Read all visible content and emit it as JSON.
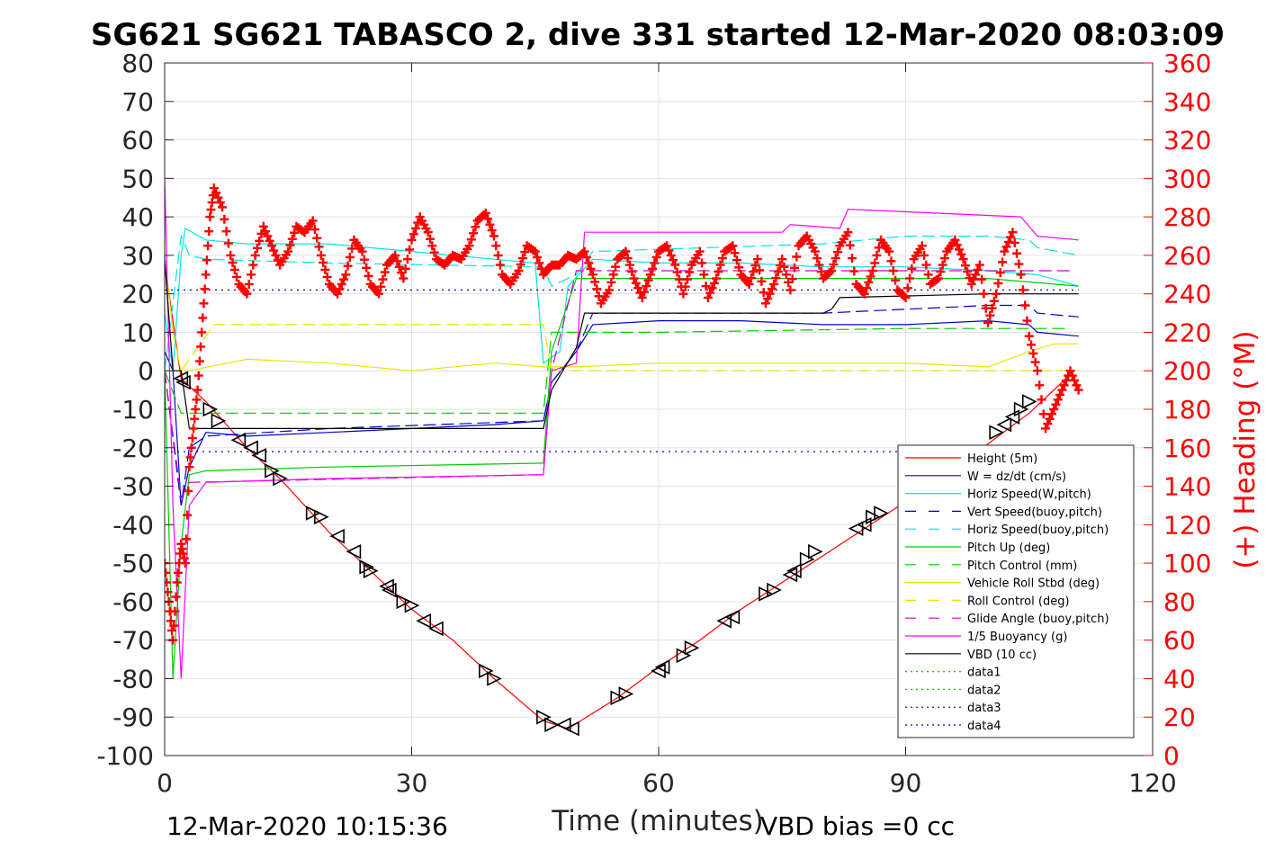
{
  "chart_data": {
    "type": "line",
    "title": "SG621 SG621 TABASCO 2, dive 331 started 12-Mar-2020 08:03:09",
    "xlabel": "Time (minutes)",
    "ylabel": "",
    "ylabel_right": "(+) Heading (°M)",
    "xlim": [
      0,
      120
    ],
    "ylim": [
      -100,
      80
    ],
    "ylim_right": [
      0,
      360
    ],
    "xticks": [
      "0",
      "30",
      "60",
      "90",
      "120"
    ],
    "yticks": [
      "80",
      "70",
      "60",
      "50",
      "40",
      "30",
      "20",
      "10",
      "0",
      "-10",
      "-20",
      "-30",
      "-40",
      "-50",
      "-60",
      "-70",
      "-80",
      "-90",
      "-100"
    ],
    "yticks_right": [
      "360",
      "340",
      "320",
      "300",
      "280",
      "260",
      "240",
      "220",
      "200",
      "180",
      "160",
      "140",
      "120",
      "100",
      "80",
      "60",
      "40",
      "20",
      "0"
    ],
    "grid": true,
    "legend_position": "lower-right",
    "footer_left": "12-Mar-2020 10:15:36",
    "footer_right": "VBD bias =0 cc",
    "series": [
      {
        "name": "Height (5m)",
        "color": "#ff0000",
        "style": "solid",
        "x": [
          0,
          2,
          5,
          10,
          14,
          20,
          25,
          30,
          35,
          40,
          46,
          49,
          55,
          60,
          65,
          70,
          75,
          80,
          85,
          90,
          95,
          100,
          105,
          110
        ],
        "y": [
          28,
          -2,
          -8,
          -20,
          -28,
          -42,
          -52,
          -62,
          -70,
          -80,
          -91,
          -93,
          -85,
          -77,
          -70,
          -62,
          -55,
          -48,
          -41,
          -34,
          -27,
          -19,
          -11,
          -1
        ]
      },
      {
        "name": "W = dz/dt (cm/s)",
        "color": "#0000cc",
        "style": "solid",
        "x": [
          0,
          1,
          2,
          3,
          5,
          10,
          20,
          30,
          40,
          46,
          47,
          50,
          52,
          60,
          70,
          80,
          90,
          100,
          105,
          106,
          111
        ],
        "y": [
          5,
          0,
          -35,
          -25,
          -16,
          -17,
          -16,
          -15,
          -14,
          -13,
          -3,
          5,
          12,
          13,
          13,
          12,
          12,
          13,
          12,
          10,
          9
        ]
      },
      {
        "name": "Horiz Speed(W,pitch)",
        "color": "#00e5e5",
        "style": "solid",
        "x": [
          0,
          1,
          2,
          2.5,
          5,
          10,
          20,
          30,
          40,
          45,
          46,
          48,
          49,
          52,
          60,
          70,
          80,
          90,
          100,
          106,
          111
        ],
        "y": [
          15,
          0,
          30,
          37,
          34,
          33,
          33,
          31,
          29,
          28,
          2,
          5,
          22,
          29,
          28,
          28,
          27,
          27,
          26,
          25,
          22
        ]
      },
      {
        "name": "Vert Speed(buoy,pitch)",
        "color": "#0000cc",
        "style": "dash",
        "x": [
          0,
          2,
          3,
          5,
          20,
          46,
          47,
          50,
          52,
          80,
          90,
          100,
          105,
          106,
          111
        ],
        "y": [
          0,
          -35,
          -20,
          -17,
          -15,
          -13,
          -3,
          5,
          15,
          15,
          16,
          17,
          17,
          15,
          14
        ]
      },
      {
        "name": "Horiz Speed(buoy,pitch)",
        "color": "#00e5e5",
        "style": "dash",
        "x": [
          0,
          2,
          3,
          5,
          20,
          46,
          47,
          50,
          52,
          80,
          90,
          100,
          105,
          106,
          111
        ],
        "y": [
          0,
          35,
          30,
          29,
          28,
          27,
          22,
          25,
          31,
          33,
          35,
          35,
          34,
          32,
          30
        ]
      },
      {
        "name": "Pitch Up (deg)",
        "color": "#00cc00",
        "style": "solid",
        "x": [
          0,
          1,
          2,
          3,
          5,
          20,
          46,
          47,
          50,
          60,
          80,
          100,
          111
        ],
        "y": [
          0,
          -80,
          -45,
          -27,
          -26,
          -25,
          -24,
          5,
          24,
          24,
          24,
          24,
          22
        ]
      },
      {
        "name": "Pitch Control (mm)",
        "color": "#00cc00",
        "style": "dash",
        "x": [
          0,
          2,
          3,
          46,
          47,
          50,
          60,
          90,
          110
        ],
        "y": [
          0,
          -11,
          -11,
          -11,
          10,
          10,
          10,
          11,
          11
        ]
      },
      {
        "name": "Vehicle Roll Stbd (deg)",
        "color": "#e6e600",
        "style": "solid",
        "x": [
          0,
          1,
          2,
          3,
          10,
          20,
          30,
          40,
          46,
          50,
          60,
          70,
          80,
          90,
          100,
          105,
          108,
          111
        ],
        "y": [
          30,
          10,
          0,
          0,
          3,
          2,
          0,
          2,
          1,
          1,
          2,
          2,
          2,
          2,
          1,
          5,
          7,
          7
        ]
      },
      {
        "name": "Roll Control (deg)",
        "color": "#e6e600",
        "style": "dash",
        "x": [
          0,
          2,
          6,
          46,
          47,
          111
        ],
        "y": [
          0,
          0,
          12,
          12,
          0,
          0
        ]
      },
      {
        "name": "Glide Angle (buoy,pitch)",
        "color": "#cc00cc",
        "style": "dash",
        "x": [
          0,
          2,
          3,
          46,
          47,
          50,
          60,
          90,
          110
        ],
        "y": [
          0,
          -33,
          -29,
          -27,
          0,
          26,
          26,
          26,
          26
        ]
      },
      {
        "name": "1/5 Buoyancy (g)",
        "color": "#ff00ff",
        "style": "solid",
        "x": [
          0,
          1,
          2,
          3,
          5,
          20,
          46,
          47,
          50,
          51,
          75,
          76,
          82,
          83,
          104,
          106,
          111
        ],
        "y": [
          50,
          -35,
          -80,
          -35,
          -29,
          -28,
          -27,
          0,
          2,
          36,
          36,
          38,
          37,
          42,
          40,
          35,
          34
        ]
      },
      {
        "name": "VBD (10 cc)",
        "color": "#000000",
        "style": "solid",
        "x": [
          0,
          1,
          2,
          3,
          20,
          46,
          47,
          50,
          51,
          80,
          81,
          82,
          100,
          111
        ],
        "y": [
          29,
          0,
          0,
          -15,
          -15,
          -15,
          -5,
          6,
          15,
          15,
          16,
          19,
          20,
          20
        ]
      },
      {
        "name": "data1",
        "color": "#00cc00",
        "style": "dot",
        "x": [
          0,
          111
        ],
        "y": [
          null,
          null
        ]
      },
      {
        "name": "data2",
        "color": "#00cc00",
        "style": "dot",
        "x": [
          0,
          111
        ],
        "y": [
          null,
          null
        ]
      },
      {
        "name": "data3",
        "color": "#0000cc",
        "style": "dot",
        "x": [
          0,
          111
        ],
        "y": [
          21,
          21
        ]
      },
      {
        "name": "data4",
        "color": "#0000cc",
        "style": "dot",
        "x": [
          0,
          111
        ],
        "y": [
          -21,
          -21
        ]
      }
    ],
    "heading": {
      "color": "#ff0000",
      "marker": "+",
      "x": [
        0,
        0.5,
        1,
        1.5,
        2,
        2.5,
        3,
        3.5,
        4,
        4.5,
        5,
        5.5,
        6,
        7,
        8,
        9,
        10,
        11,
        12,
        13,
        14,
        15,
        16,
        17,
        18,
        19,
        20,
        21,
        22,
        23,
        24,
        25,
        26,
        27,
        28,
        29,
        30,
        31,
        32,
        33,
        34,
        35,
        36,
        37,
        38,
        39,
        40,
        41,
        42,
        43,
        44,
        45,
        46,
        47,
        48,
        49,
        50,
        51,
        52,
        53,
        54,
        55,
        56,
        57,
        58,
        59,
        60,
        61,
        62,
        63,
        64,
        65,
        66,
        67,
        68,
        69,
        70,
        71,
        72,
        73,
        74,
        75,
        76,
        77,
        78,
        79,
        80,
        81,
        82,
        83,
        84,
        85,
        86,
        87,
        88,
        89,
        90,
        91,
        92,
        93,
        94,
        95,
        96,
        97,
        98,
        99,
        100,
        101,
        102,
        103,
        104,
        105,
        106,
        107,
        108,
        109,
        110,
        111
      ],
      "y": [
        100,
        80,
        60,
        90,
        110,
        100,
        150,
        170,
        190,
        220,
        250,
        280,
        295,
        285,
        260,
        245,
        240,
        260,
        275,
        265,
        255,
        262,
        275,
        272,
        278,
        260,
        245,
        240,
        250,
        268,
        262,
        245,
        240,
        255,
        260,
        248,
        268,
        280,
        272,
        258,
        255,
        260,
        258,
        265,
        278,
        282,
        270,
        250,
        245,
        252,
        265,
        262,
        250,
        255,
        255,
        260,
        258,
        262,
        250,
        235,
        242,
        258,
        262,
        248,
        238,
        250,
        262,
        265,
        255,
        240,
        255,
        262,
        238,
        248,
        262,
        265,
        250,
        245,
        258,
        235,
        245,
        258,
        242,
        265,
        270,
        262,
        248,
        252,
        265,
        272,
        245,
        240,
        252,
        268,
        262,
        242,
        238,
        258,
        265,
        245,
        248,
        262,
        268,
        258,
        245,
        255,
        225,
        240,
        262,
        272,
        250,
        218,
        200,
        170,
        180,
        190,
        200,
        190
      ]
    },
    "triangles": {
      "color": "#000000",
      "x": [
        2,
        2.3,
        5.5,
        6.5,
        9,
        10.5,
        11.5,
        13,
        14,
        18,
        19,
        21,
        23,
        24.5,
        25,
        27,
        27.3,
        29,
        30,
        31.5,
        33,
        39,
        40,
        46,
        47,
        48.5,
        49.5,
        55,
        56,
        60,
        60.5,
        63,
        64,
        68,
        69,
        73,
        74,
        76,
        76.5,
        78,
        79,
        84,
        85,
        86,
        87,
        90,
        92,
        93,
        101,
        102,
        103,
        104,
        105
      ],
      "y": [
        -2,
        -3,
        -10,
        -13,
        -18,
        -20,
        -22,
        -26,
        -28,
        -37,
        -38,
        -43,
        -47,
        -51,
        -52,
        -56,
        -57,
        -60,
        -61,
        -65,
        -67,
        -78,
        -80,
        -90,
        -92,
        -92,
        -93,
        -85,
        -84,
        -78,
        -77,
        -74,
        -72,
        -65,
        -64,
        -58,
        -57,
        -53,
        -52,
        -49,
        -47,
        -41,
        -40,
        -38,
        -37,
        -34,
        -31,
        -29,
        -16,
        -14,
        -12,
        -10,
        -8
      ],
      "dir": [
        "l",
        "l",
        "r",
        "r",
        "l",
        "l",
        "l",
        "r",
        "r",
        "r",
        "r",
        "l",
        "l",
        "r",
        "r",
        "l",
        "l",
        "r",
        "r",
        "l",
        "l",
        "r",
        "r",
        "r",
        "r",
        "l",
        "l",
        "r",
        "r",
        "l",
        "l",
        "r",
        "r",
        "l",
        "l",
        "r",
        "r",
        "l",
        "l",
        "r",
        "r",
        "l",
        "l",
        "r",
        "r",
        "l",
        "l",
        "r",
        "r",
        "l",
        "l",
        "r",
        "r"
      ]
    }
  }
}
